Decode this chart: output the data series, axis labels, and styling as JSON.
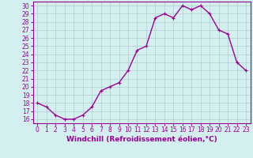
{
  "x": [
    0,
    1,
    2,
    3,
    4,
    5,
    6,
    7,
    8,
    9,
    10,
    11,
    12,
    13,
    14,
    15,
    16,
    17,
    18,
    19,
    20,
    21,
    22,
    23
  ],
  "y": [
    18.0,
    17.5,
    16.5,
    16.0,
    16.0,
    16.5,
    17.5,
    19.5,
    20.0,
    20.5,
    22.0,
    24.5,
    25.0,
    28.5,
    29.0,
    28.5,
    30.0,
    29.5,
    30.0,
    29.0,
    27.0,
    26.5,
    23.0,
    22.0
  ],
  "line_color": "#990099",
  "marker": "+",
  "marker_size": 3,
  "xlabel": "Windchill (Refroidissement éolien,°C)",
  "xlabel_fontsize": 6.5,
  "ytick_labels": [
    "16",
    "17",
    "18",
    "19",
    "20",
    "21",
    "22",
    "23",
    "24",
    "25",
    "26",
    "27",
    "28",
    "29",
    "30"
  ],
  "yticks": [
    16,
    17,
    18,
    19,
    20,
    21,
    22,
    23,
    24,
    25,
    26,
    27,
    28,
    29,
    30
  ],
  "xticks": [
    0,
    1,
    2,
    3,
    4,
    5,
    6,
    7,
    8,
    9,
    10,
    11,
    12,
    13,
    14,
    15,
    16,
    17,
    18,
    19,
    20,
    21,
    22,
    23
  ],
  "xlim": [
    -0.5,
    23.5
  ],
  "ylim": [
    15.5,
    30.5
  ],
  "bg_color": "#d4efef",
  "grid_color": "#b0cccc",
  "line_color2": "#990099",
  "tick_label_color": "#990099",
  "line_width": 1.0,
  "tick_label_size": 5.5,
  "xlabel_weight": "bold"
}
